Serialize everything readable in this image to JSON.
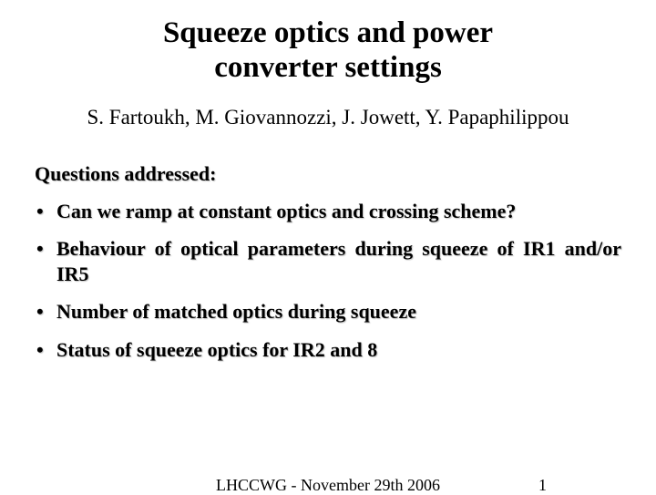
{
  "title": {
    "line1": "Squeeze optics and power",
    "line2": "converter settings",
    "fontsize": 33,
    "color": "#000000"
  },
  "authors": {
    "text": "S. Fartoukh, M. Giovannozzi, J. Jowett, Y. Papaphilippou",
    "fontsize": 23,
    "color": "#000000"
  },
  "questions": {
    "heading": "Questions addressed:",
    "fontsize": 22,
    "color": "#000000",
    "items": [
      "Can we ramp at constant optics and crossing scheme?",
      "Behaviour of optical parameters during squeeze of IR1 and/or IR5",
      "Number of matched optics during squeeze",
      "Status of squeeze optics for IR2 and 8"
    ]
  },
  "footer": {
    "text": "LHCCWG - November 29th 2006",
    "page": "1",
    "fontsize": 18,
    "color": "#000000"
  },
  "background_color": "#ffffff"
}
